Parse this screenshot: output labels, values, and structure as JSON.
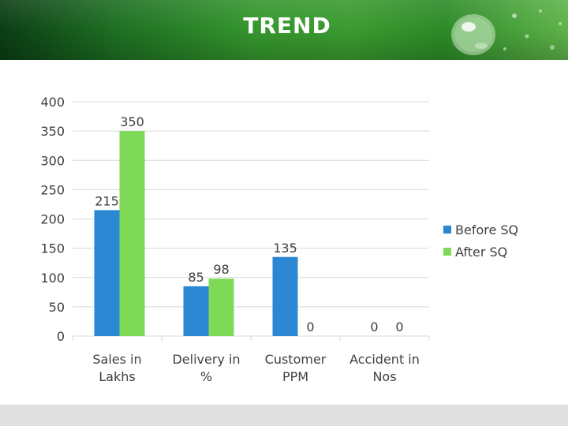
{
  "slide": {
    "title": "TREND"
  },
  "colors": {
    "before": "#2b87d1",
    "after": "#7ed957",
    "grid": "#d9d9d9",
    "text": "#404040"
  },
  "chart_data": {
    "type": "bar",
    "categories": [
      [
        "Sales in",
        "Lakhs"
      ],
      [
        "Delivery in",
        "%"
      ],
      [
        "Customer",
        "PPM"
      ],
      [
        "Accident in",
        "Nos"
      ]
    ],
    "series": [
      {
        "name": "Before SQ",
        "values": [
          215,
          85,
          135,
          0
        ],
        "labels": [
          "215",
          "85",
          "135",
          "0"
        ]
      },
      {
        "name": "After SQ",
        "values": [
          350,
          98,
          0,
          0
        ],
        "labels": [
          "350",
          "98",
          "0",
          "0"
        ]
      }
    ],
    "title": "",
    "xlabel": "",
    "ylabel": "",
    "ylim": [
      0,
      400
    ],
    "yticks": [
      0,
      50,
      100,
      150,
      200,
      250,
      300,
      350,
      400
    ],
    "grid": true,
    "legend": "right"
  }
}
